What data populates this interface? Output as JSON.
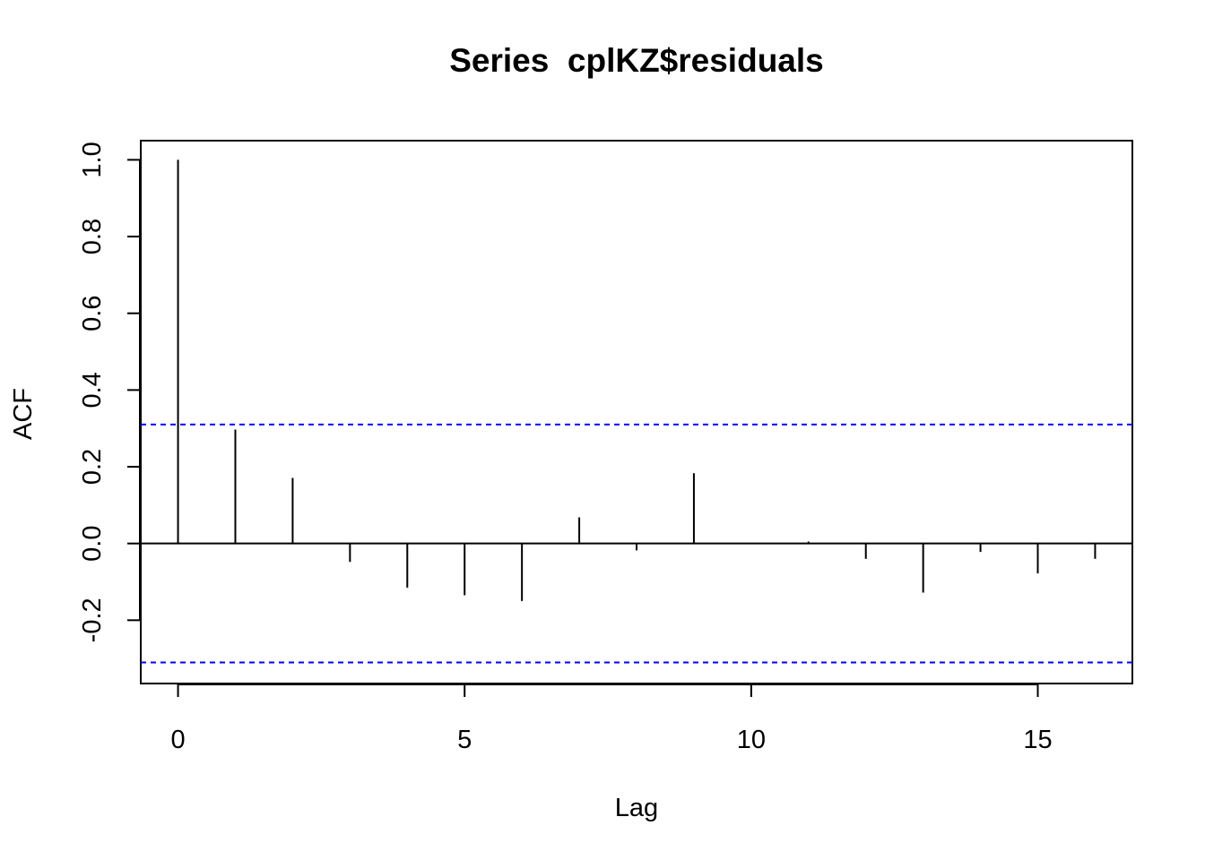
{
  "chart_data": {
    "type": "bar",
    "title": "Series  cplKZ$residuals",
    "xlabel": "Lag",
    "ylabel": "ACF",
    "x": [
      0,
      1,
      2,
      3,
      4,
      5,
      6,
      7,
      8,
      9,
      10,
      11,
      12,
      13,
      14,
      15,
      16
    ],
    "values": [
      1.0,
      0.297,
      0.171,
      -0.048,
      -0.115,
      -0.135,
      -0.15,
      0.068,
      -0.018,
      0.183,
      0.001,
      0.005,
      -0.04,
      -0.128,
      -0.022,
      -0.078,
      -0.04
    ],
    "confidence_bounds": [
      0.31,
      -0.31
    ],
    "xlim": [
      -0.65,
      16.65
    ],
    "ylim": [
      -0.365,
      1.05
    ],
    "x_ticks": [
      "0",
      "5",
      "10",
      "15"
    ],
    "y_ticks": [
      "-0.2",
      "0.0",
      "0.2",
      "0.4",
      "0.6",
      "0.8",
      "1.0"
    ],
    "grid": false,
    "legend": "none",
    "colors": {
      "bars": "#000000",
      "zero_line": "#000000",
      "confidence_lines": "#0000ff",
      "frame": "#000000"
    }
  }
}
